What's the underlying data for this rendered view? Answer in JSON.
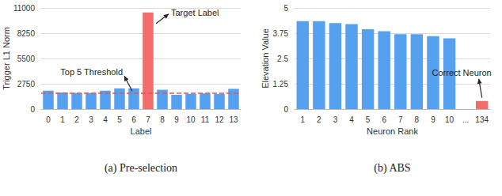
{
  "chart_data": [
    {
      "type": "bar",
      "title": "(a) Pre-selection",
      "x_label": "Label",
      "y_label": "Trigger L1 Norm",
      "categories": [
        "0",
        "1",
        "2",
        "3",
        "4",
        "5",
        "6",
        "7",
        "8",
        "9",
        "10",
        "11",
        "12",
        "13"
      ],
      "values": [
        2000,
        1800,
        1750,
        1750,
        2000,
        2250,
        2250,
        10500,
        2100,
        1550,
        1650,
        1700,
        1650,
        2200
      ],
      "colors": [
        "#56a0f0",
        "#56a0f0",
        "#56a0f0",
        "#56a0f0",
        "#56a0f0",
        "#56a0f0",
        "#56a0f0",
        "#f36c6c",
        "#56a0f0",
        "#56a0f0",
        "#56a0f0",
        "#56a0f0",
        "#56a0f0",
        "#56a0f0"
      ],
      "ylim": [
        0,
        11000
      ],
      "yticks": [
        0,
        2750,
        5500,
        8250,
        11000
      ],
      "grid": true,
      "annotations": [
        {
          "text": "Target Label",
          "category": "7"
        },
        {
          "text": "Top 5 Threshold",
          "value": 1700,
          "color": "#e8544e",
          "line_style": "dashed"
        }
      ]
    },
    {
      "type": "bar",
      "title": "(b) ABS",
      "x_label": "Neuron Rank",
      "y_label": "Elevation Value",
      "categories": [
        "1",
        "2",
        "3",
        "4",
        "5",
        "6",
        "7",
        "8",
        "9",
        "10",
        "...",
        "134"
      ],
      "values": [
        4.35,
        4.35,
        4.25,
        4.2,
        3.95,
        3.85,
        3.7,
        3.7,
        3.6,
        3.5,
        null,
        0.4
      ],
      "colors": [
        "#56a0f0",
        "#56a0f0",
        "#56a0f0",
        "#56a0f0",
        "#56a0f0",
        "#56a0f0",
        "#56a0f0",
        "#56a0f0",
        "#56a0f0",
        "#56a0f0",
        "#56a0f0",
        "#f36c6c"
      ],
      "ylim": [
        0,
        5
      ],
      "yticks": [
        0,
        1.25,
        2.5,
        3.75,
        5
      ],
      "grid": true,
      "annotations": [
        {
          "text": "Correct Neuron",
          "category": "134"
        }
      ]
    }
  ]
}
